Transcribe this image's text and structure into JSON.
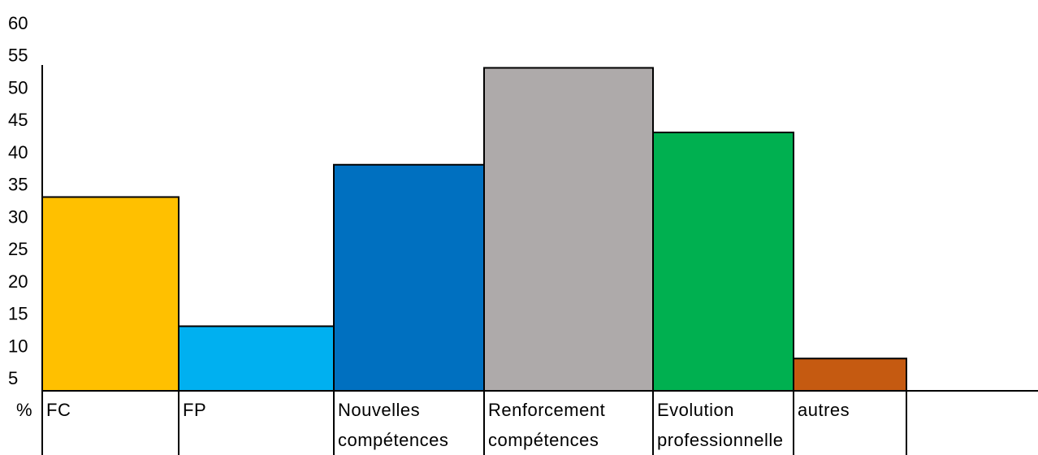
{
  "chart_data": {
    "type": "bar",
    "categories": [
      [
        "FC"
      ],
      [
        "FP"
      ],
      [
        "Nouvelles",
        "compétences"
      ],
      [
        "Renforcement",
        "compétences"
      ],
      [
        "Evolution",
        "professionnelle"
      ],
      [
        "autres"
      ]
    ],
    "values": [
      33,
      13,
      38,
      53,
      43,
      8
    ],
    "colors": [
      "#ffc000",
      "#00b0f0",
      "#0070c0",
      "#aeaaaa",
      "#00b050",
      "#c55a11"
    ],
    "yticks": [
      "5",
      "10",
      "15",
      "20",
      "25",
      "30",
      "35",
      "40",
      "45",
      "50",
      "55",
      "60"
    ],
    "ylabel": "%",
    "ylim": [
      3,
      60
    ],
    "grid": false,
    "legend": "none"
  }
}
